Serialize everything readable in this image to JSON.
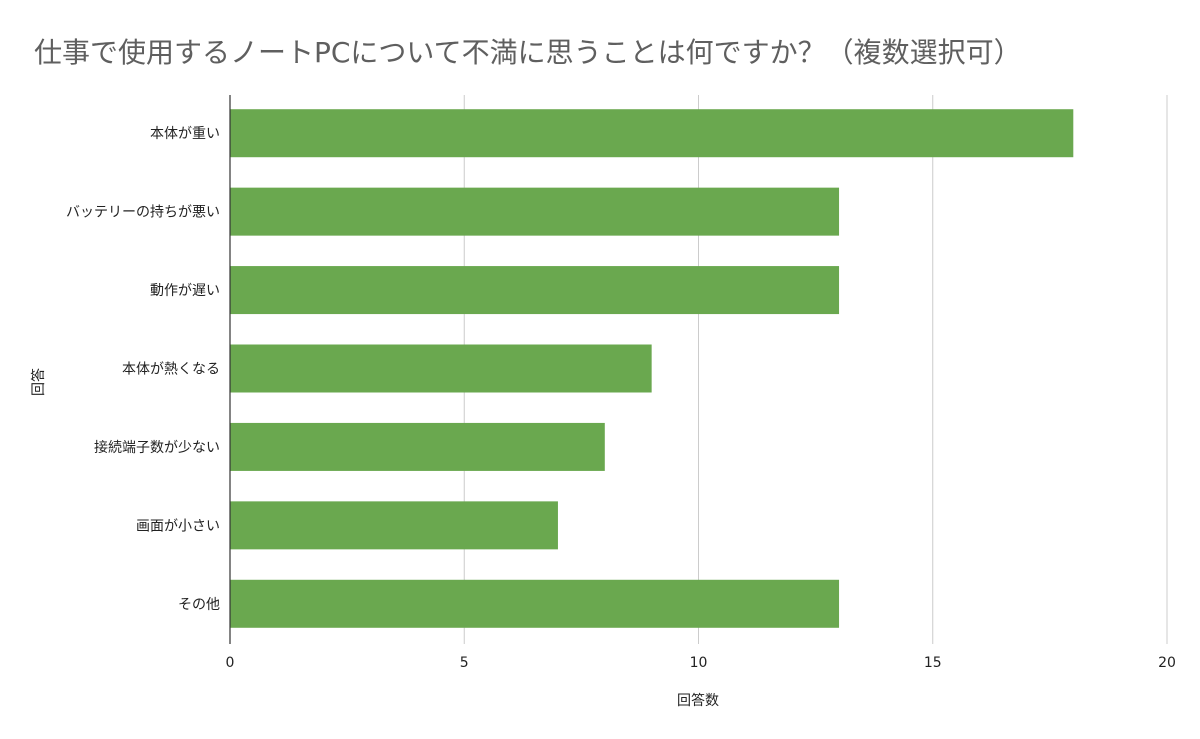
{
  "chart_data": {
    "type": "bar",
    "orientation": "horizontal",
    "title": "仕事で使用するノートPCについて不満に思うことは何ですか？（複数選択可）",
    "xlabel": "回答数",
    "ylabel": "回答",
    "categories": [
      "本体が重い",
      "バッテリーの持ちが悪い",
      "動作が遅い",
      "本体が熱くなる",
      "接続端子数が少ない",
      "画面が小さい",
      "その他"
    ],
    "values": [
      18,
      13,
      13,
      9,
      8,
      7,
      13
    ],
    "xlim": [
      0,
      20
    ],
    "xticks": [
      "0",
      "5",
      "10",
      "15",
      "20"
    ],
    "grid": true,
    "bar_color": "#6aa84f"
  }
}
